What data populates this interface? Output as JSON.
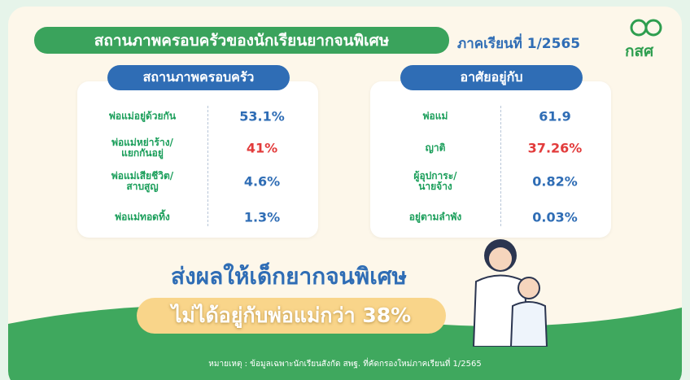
{
  "header": {
    "title": "สถานภาพครอบครัวของนักเรียนยากจนพิเศษ",
    "subtitle": "ภาคเรียนที่ 1/2565"
  },
  "logo": "กสศ",
  "panels": [
    {
      "title": "สถานภาพครอบครัว",
      "rows": [
        {
          "label": "พ่อแม่อยู่ด้วยกัน",
          "value": "53.1%",
          "color": "#2f6db5"
        },
        {
          "label": "พ่อแม่หย่าร้าง/\nแยกกันอยู่",
          "value": "41%",
          "color": "#e23b3b"
        },
        {
          "label": "พ่อแม่เสียชีวิต/\nสาบสูญ",
          "value": "4.6%",
          "color": "#2f6db5"
        },
        {
          "label": "พ่อแม่ทอดทิ้ง",
          "value": "1.3%",
          "color": "#2f6db5"
        }
      ]
    },
    {
      "title": "อาศัยอยู่กับ",
      "rows": [
        {
          "label": "พ่อแม่",
          "value": "61.9",
          "color": "#2f6db5"
        },
        {
          "label": "ญาติ",
          "value": "37.26%",
          "color": "#e23b3b"
        },
        {
          "label": "ผู้อุปการะ/\nนายจ้าง",
          "value": "0.82%",
          "color": "#2f6db5"
        },
        {
          "label": "อยู่ตามลำพัง",
          "value": "0.03%",
          "color": "#2f6db5"
        }
      ]
    }
  ],
  "headline": "ส่งผลให้เด็กยากจนพิเศษ",
  "highlight": "ไม่ได้อยู่กับพ่อแม่กว่า 38%",
  "footnote": "หมายเหตุ : ข้อมูลเฉพาะนักเรียนสังกัด สพฐ. ที่คัดกรองใหม่ภาคเรียนที่ 1/2565"
}
